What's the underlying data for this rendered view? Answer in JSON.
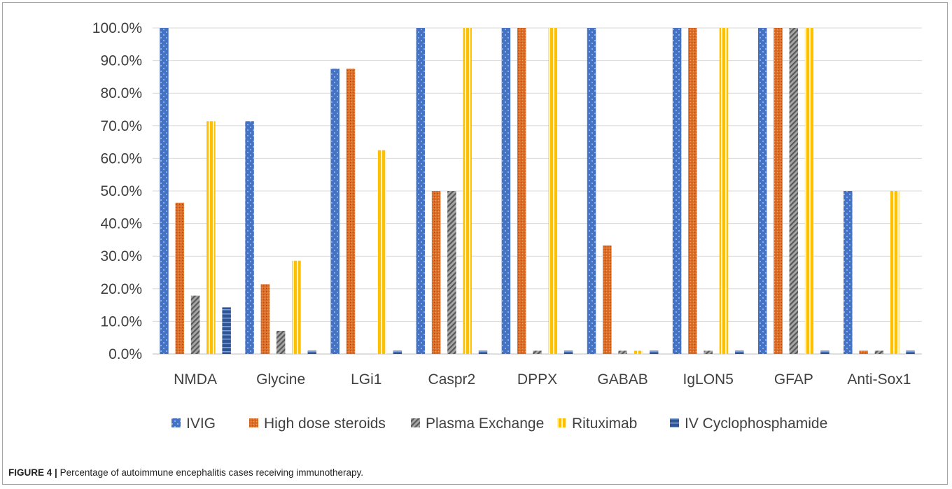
{
  "caption": {
    "label": "FIGURE 4 |",
    "text": "Percentage of autoimmune encephalitis cases receiving immunotherapy."
  },
  "chart_data": {
    "type": "bar",
    "title": "",
    "xlabel": "",
    "ylabel": "",
    "ylim": [
      0,
      100
    ],
    "ytick_labels": [
      "0.0%",
      "10.0%",
      "20.0%",
      "30.0%",
      "40.0%",
      "50.0%",
      "60.0%",
      "70.0%",
      "80.0%",
      "90.0%",
      "100.0%"
    ],
    "grid": true,
    "legend_position": "bottom",
    "categories": [
      "NMDA",
      "Glycine",
      "LGi1",
      "Caspr2",
      "DPPX",
      "GABAB",
      "IgLON5",
      "GFAP",
      "Anti-Sox1"
    ],
    "series": [
      {
        "name": "IVIG",
        "color": "#4472c4",
        "pattern": "dots",
        "values": [
          100,
          71.4,
          87.5,
          100,
          100,
          100,
          100,
          100,
          50
        ]
      },
      {
        "name": "High dose steroids",
        "color": "#e36c1e",
        "pattern": "dense-dots",
        "values": [
          46.4,
          21.4,
          87.5,
          50,
          100,
          33.3,
          100,
          100,
          1
        ]
      },
      {
        "name": "Plasma Exchange",
        "color": "#8c8c8c",
        "pattern": "diagonal",
        "values": [
          17.9,
          7.1,
          0,
          50,
          1,
          1,
          1,
          100,
          1
        ]
      },
      {
        "name": "Rituximab",
        "color": "#ffc000",
        "pattern": "vertical",
        "values": [
          71.4,
          28.6,
          62.5,
          100,
          100,
          1,
          100,
          100,
          50
        ]
      },
      {
        "name": "IV Cyclophosphamide",
        "color": "#2f5597",
        "pattern": "horizontal",
        "values": [
          14.3,
          1,
          1,
          1,
          1,
          1,
          1,
          1,
          1
        ]
      }
    ]
  }
}
